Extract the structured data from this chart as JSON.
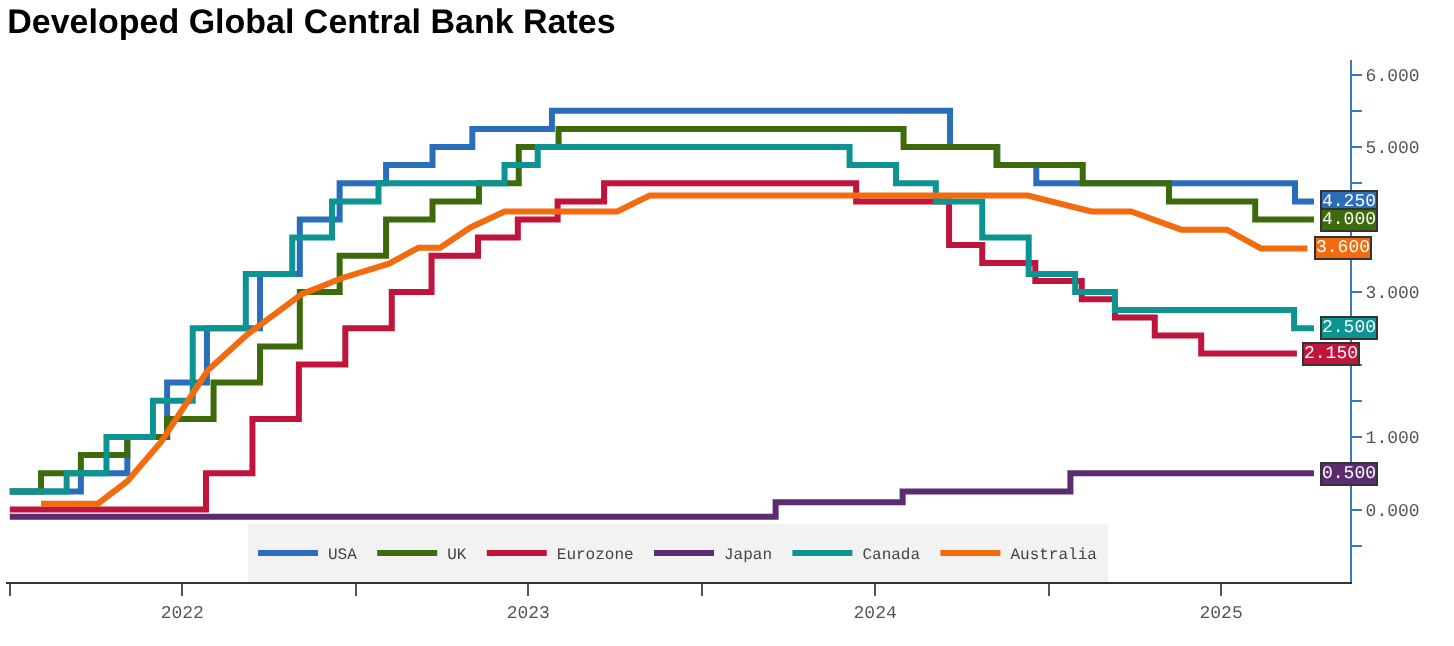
{
  "chart_data": {
    "type": "step",
    "title": "Developed Global Central Bank Rates",
    "legend": "bottom",
    "xlim": [
      "2021-12-28",
      "2025-11-15"
    ],
    "xticks": [
      {
        "value": "2022-01-01",
        "label": null
      },
      {
        "value": "2022-07-02",
        "label": "2022"
      },
      {
        "value": "2023-01-01",
        "label": null
      },
      {
        "value": "2023-07-02",
        "label": "2023"
      },
      {
        "value": "2024-01-01",
        "label": null
      },
      {
        "value": "2024-07-02",
        "label": "2024"
      },
      {
        "value": "2025-01-01",
        "label": null
      },
      {
        "value": "2025-07-02",
        "label": "2025"
      }
    ],
    "ylim": [
      -1.0,
      6.2
    ],
    "yticks": [
      {
        "value": -0.5,
        "label": null
      },
      {
        "value": 0,
        "label": "0.000"
      },
      {
        "value": 0.5,
        "label": null
      },
      {
        "value": 1,
        "label": "1.000"
      },
      {
        "value": 1.5,
        "label": null
      },
      {
        "value": 2,
        "label": null
      },
      {
        "value": 2.5,
        "label": null
      },
      {
        "value": 3,
        "label": "3.000"
      },
      {
        "value": 3.5,
        "label": null
      },
      {
        "value": 4,
        "label": null
      },
      {
        "value": 4.5,
        "label": null
      },
      {
        "value": 5,
        "label": "5.000"
      },
      {
        "value": 5.5,
        "label": null
      },
      {
        "value": 6,
        "label": "6.000"
      }
    ],
    "series": [
      {
        "name": "USA",
        "color": "#2a6ebb",
        "x": [
          "2022-01-01",
          "2022-03-17",
          "2022-05-05",
          "2022-06-16",
          "2022-07-28",
          "2022-09-22",
          "2022-11-03",
          "2022-12-15",
          "2023-02-02",
          "2023-03-23",
          "2023-05-04",
          "2023-07-27",
          "2024-09-19",
          "2024-11-08",
          "2024-12-19",
          "2025-09-18",
          "2025-10-08"
        ],
        "values": [
          0.25,
          0.5,
          1.0,
          1.75,
          2.5,
          3.25,
          4.0,
          4.5,
          4.75,
          5.0,
          5.25,
          5.5,
          5.0,
          4.75,
          4.5,
          4.25,
          4.25
        ],
        "value_labels": [
          null,
          null,
          null,
          null,
          null,
          null,
          null,
          null,
          null,
          null,
          null,
          null,
          null,
          null,
          null,
          null,
          "4.250"
        ]
      },
      {
        "name": "UK",
        "color": "#3d6b0b",
        "x": [
          "2022-01-01",
          "2022-02-03",
          "2022-03-17",
          "2022-05-05",
          "2022-06-16",
          "2022-08-04",
          "2022-09-22",
          "2022-11-03",
          "2022-12-15",
          "2023-02-02",
          "2023-03-23",
          "2023-05-11",
          "2023-06-22",
          "2023-08-03",
          "2024-08-01",
          "2024-11-07",
          "2025-02-06",
          "2025-05-08",
          "2025-08-07",
          "2025-10-08"
        ],
        "values": [
          0.25,
          0.5,
          0.75,
          1.0,
          1.25,
          1.75,
          2.25,
          3.0,
          3.5,
          4.0,
          4.25,
          4.5,
          5.0,
          5.25,
          5.0,
          4.75,
          4.5,
          4.25,
          4.0,
          4.0
        ],
        "value_labels": [
          null,
          null,
          null,
          null,
          null,
          null,
          null,
          null,
          null,
          null,
          null,
          null,
          null,
          null,
          null,
          null,
          null,
          null,
          null,
          "4.000"
        ]
      },
      {
        "name": "Eurozone",
        "color": "#c0143c",
        "x": [
          "2022-01-01",
          "2022-07-27",
          "2022-09-14",
          "2022-11-02",
          "2022-12-21",
          "2023-02-08",
          "2023-03-22",
          "2023-05-10",
          "2023-06-21",
          "2023-08-02",
          "2023-09-20",
          "2024-06-12",
          "2024-09-18",
          "2024-10-23",
          "2024-12-18",
          "2025-02-05",
          "2025-03-12",
          "2025-04-23",
          "2025-06-11",
          "2025-09-20"
        ],
        "values": [
          0,
          0.5,
          1.25,
          2.0,
          2.5,
          3.0,
          3.5,
          3.75,
          4.0,
          4.25,
          4.5,
          4.25,
          3.65,
          3.4,
          3.15,
          2.9,
          2.65,
          2.4,
          2.15,
          2.15
        ],
        "value_labels": [
          null,
          null,
          null,
          null,
          null,
          null,
          null,
          null,
          null,
          null,
          null,
          null,
          null,
          null,
          null,
          null,
          null,
          null,
          null,
          "2.150"
        ]
      },
      {
        "name": "Japan",
        "color": "#5b2c6f",
        "x": [
          "2022-01-01",
          "2024-03-19",
          "2024-07-31",
          "2025-01-24",
          "2025-10-08"
        ],
        "values": [
          -0.1,
          0.1,
          0.25,
          0.5,
          0.5
        ],
        "value_labels": [
          null,
          null,
          null,
          null,
          "0.500"
        ]
      },
      {
        "name": "Canada",
        "color": "#0e9393",
        "x": [
          "2022-01-01",
          "2022-03-02",
          "2022-04-13",
          "2022-06-01",
          "2022-07-13",
          "2022-09-07",
          "2022-10-26",
          "2022-12-07",
          "2023-01-25",
          "2023-06-07",
          "2023-07-12",
          "2024-06-05",
          "2024-07-24",
          "2024-09-04",
          "2024-10-23",
          "2024-12-11",
          "2025-01-29",
          "2025-03-12",
          "2025-09-17",
          "2025-10-08"
        ],
        "values": [
          0.25,
          0.5,
          1.0,
          1.5,
          2.5,
          3.25,
          3.75,
          4.25,
          4.5,
          4.75,
          5.0,
          4.75,
          4.5,
          4.25,
          3.75,
          3.25,
          3.0,
          2.75,
          2.5,
          2.5
        ],
        "value_labels": [
          null,
          null,
          null,
          null,
          null,
          null,
          null,
          null,
          null,
          null,
          null,
          null,
          null,
          null,
          null,
          null,
          null,
          null,
          null,
          "2.500"
        ]
      },
      {
        "name": "Australia",
        "type": "line",
        "color": "#f26b0f",
        "x": [
          "2022-02-03",
          "2022-04-04",
          "2022-05-05",
          "2022-06-10",
          "2022-07-29",
          "2022-09-09",
          "2022-11-05",
          "2022-12-17",
          "2023-02-05",
          "2023-03-08",
          "2023-03-31",
          "2023-05-02",
          "2023-06-07",
          "2023-10-04",
          "2023-11-07",
          "2024-12-10",
          "2025-02-15",
          "2025-03-29",
          "2025-05-21",
          "2025-07-08",
          "2025-08-13",
          "2025-10-01"
        ],
        "values": [
          0.08,
          0.08,
          0.39,
          0.94,
          1.92,
          2.42,
          2.97,
          3.19,
          3.39,
          3.61,
          3.61,
          3.89,
          4.11,
          4.11,
          4.33,
          4.33,
          4.11,
          4.11,
          3.86,
          3.86,
          3.6,
          3.6
        ],
        "value_labels": [
          null,
          null,
          null,
          null,
          null,
          null,
          null,
          null,
          null,
          null,
          null,
          null,
          null,
          null,
          null,
          null,
          null,
          null,
          null,
          null,
          null,
          "3.600"
        ]
      }
    ]
  }
}
